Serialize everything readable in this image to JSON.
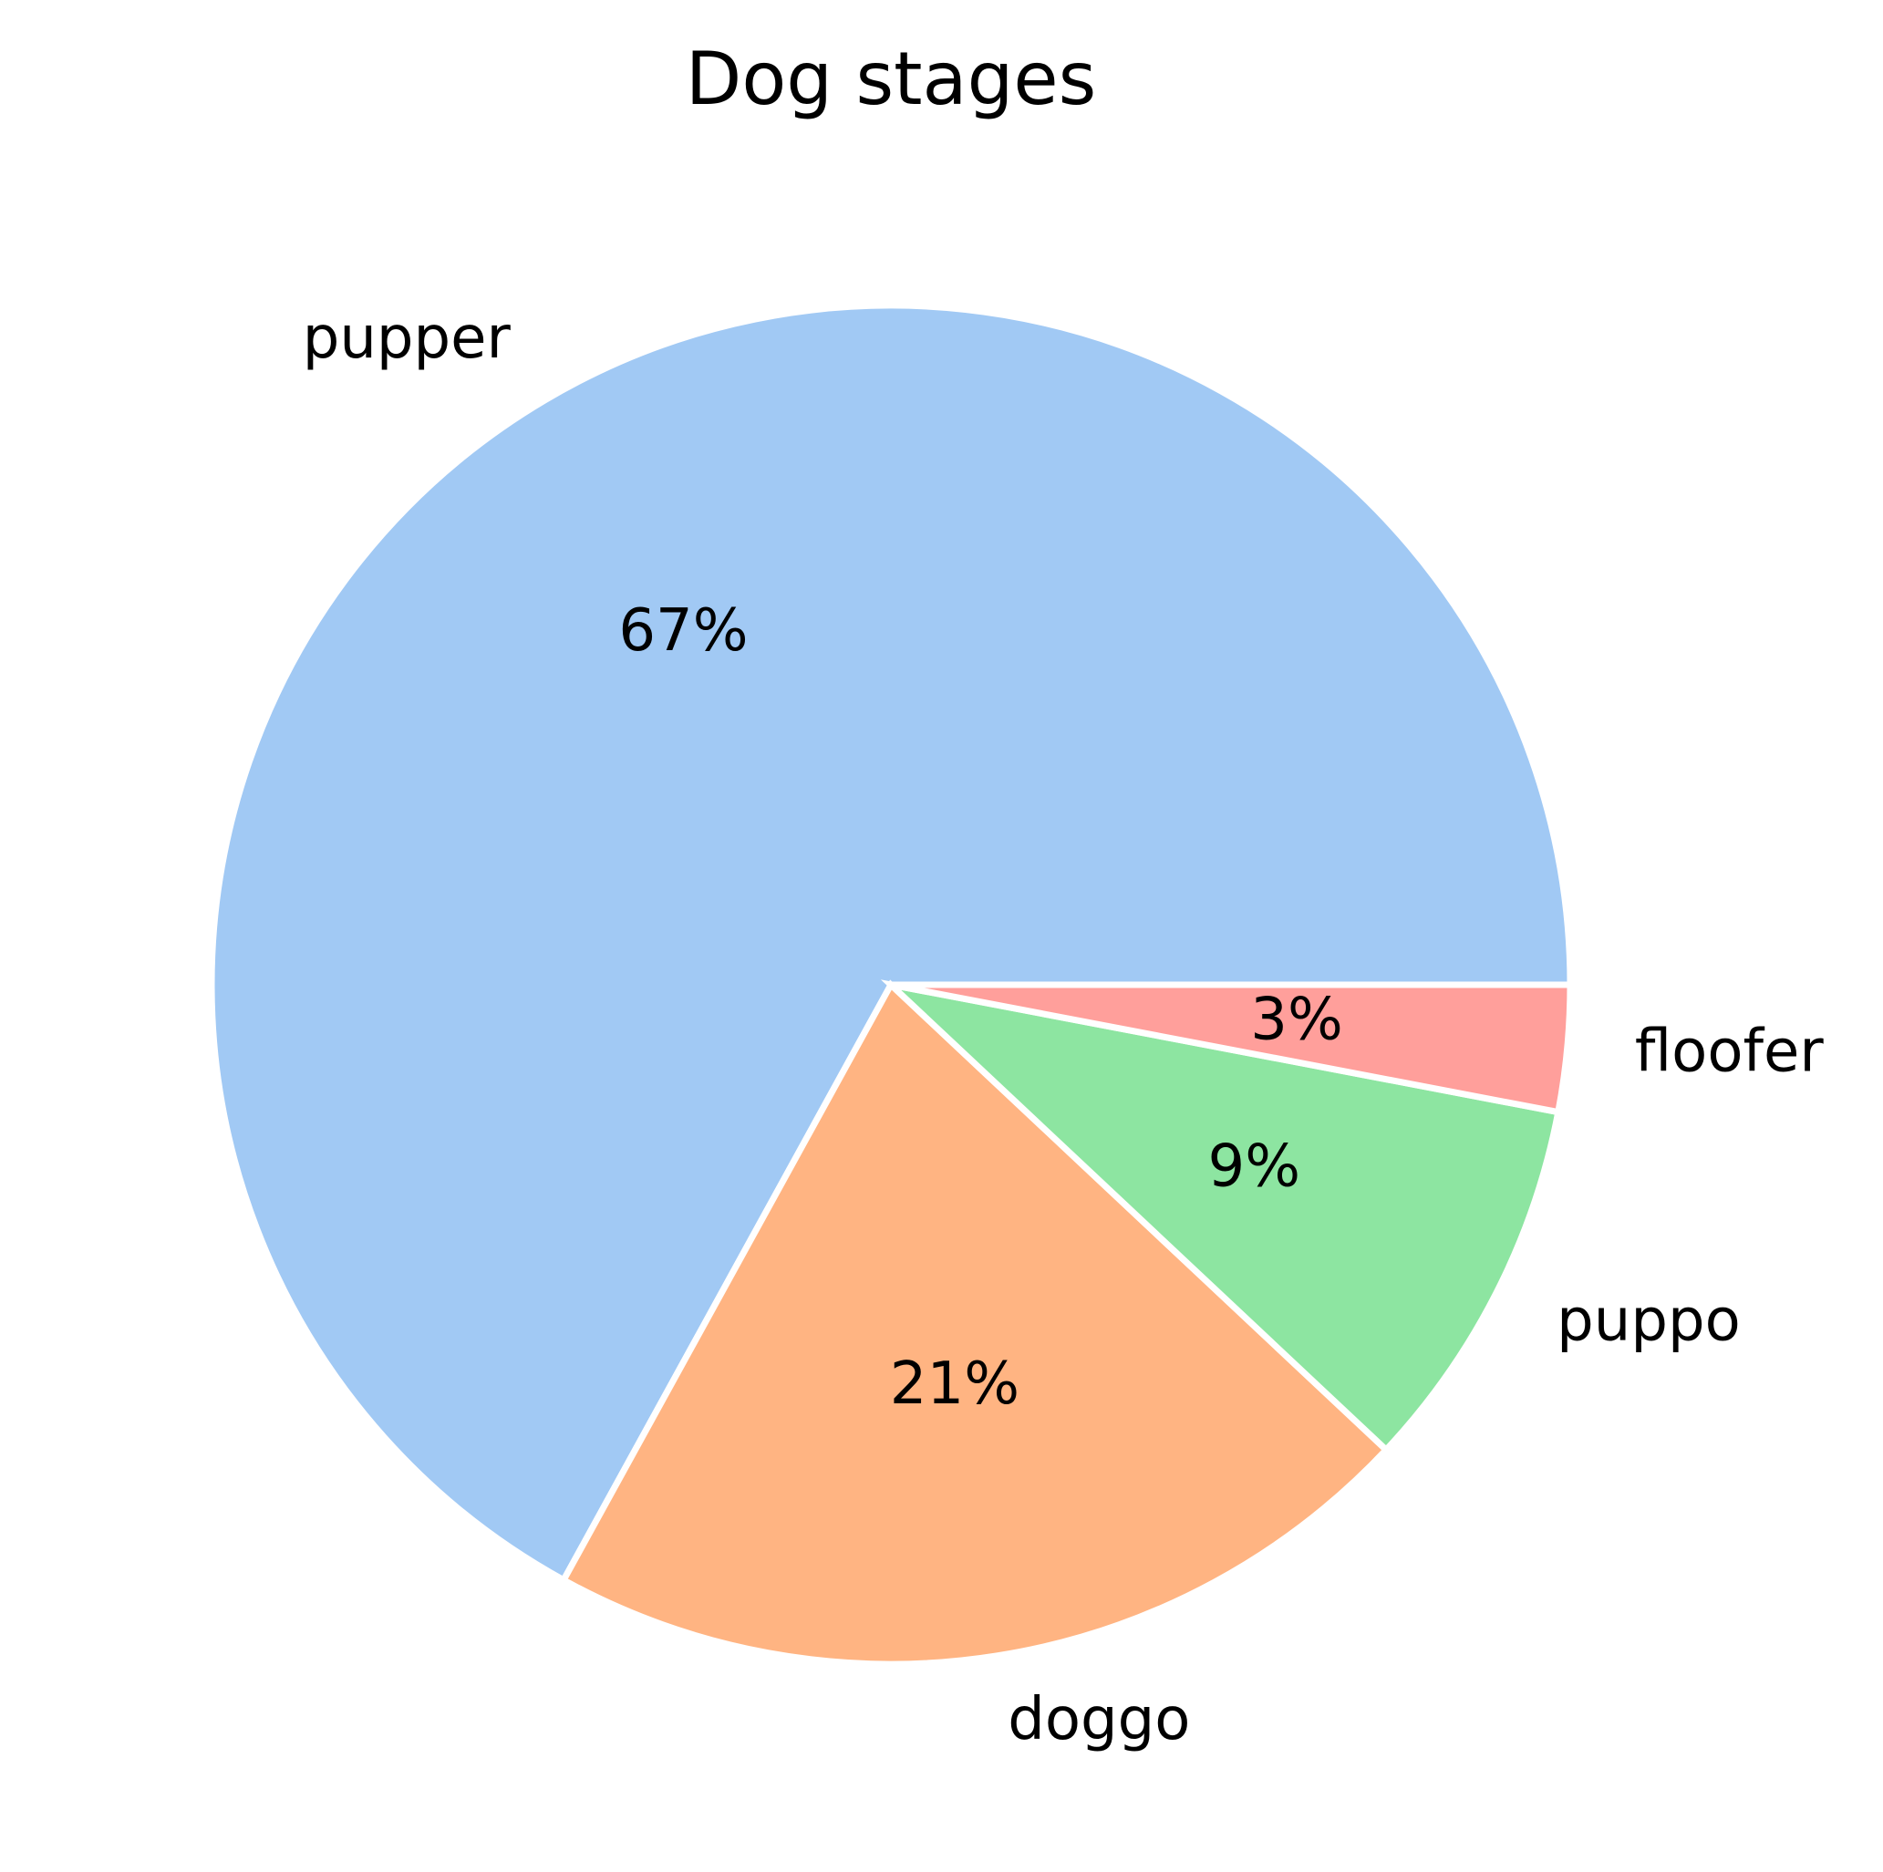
{
  "chart_data": {
    "type": "pie",
    "title": "Dog stages",
    "categories": [
      "pupper",
      "doggo",
      "puppo",
      "floofer"
    ],
    "values": [
      67,
      21,
      9,
      3
    ],
    "percent_labels": [
      "67%",
      "21%",
      "9%",
      "3%"
    ],
    "colors": [
      "#a1c9f4",
      "#ffb482",
      "#8de5a1",
      "#ff9f9b"
    ],
    "start_angle_deg": 0,
    "direction": "counterclockwise",
    "legend": "none"
  }
}
